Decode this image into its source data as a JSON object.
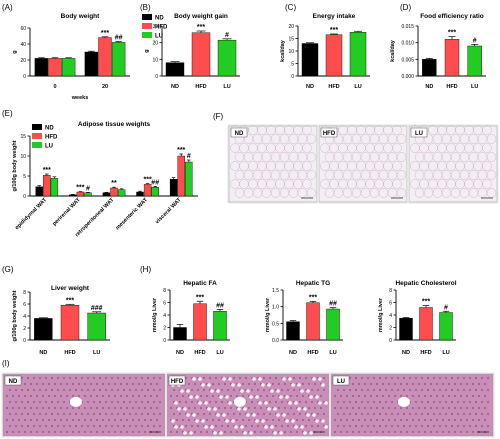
{
  "colors": {
    "ND": "#000000",
    "HFD": "#ff4d4d",
    "LU": "#22cc22",
    "axis": "#000000",
    "histo_adipose": "#f2eef3",
    "histo_liver": "#c98fb8"
  },
  "groups": [
    "ND",
    "HFD",
    "LU"
  ],
  "legend": {
    "labels": [
      "ND",
      "HFD",
      "LU"
    ]
  },
  "histology": {
    "adipose": {
      "panel_label": "(F)",
      "labels": [
        "ND",
        "HFD",
        "LU"
      ]
    },
    "liver": {
      "panel_label": "(I)",
      "labels": [
        "ND",
        "HFD",
        "LU"
      ]
    }
  },
  "chart_data": [
    {
      "id": "A",
      "panel_label": "(A)",
      "type": "bar",
      "title": "Body weight",
      "xlabel": "weeks",
      "ylabel": "g",
      "categories": [
        "0",
        "20"
      ],
      "ylim": [
        0,
        60
      ],
      "yticks": [
        0,
        20,
        40,
        60
      ],
      "series": [
        {
          "name": "ND",
          "values": [
            22,
            30
          ],
          "err": [
            0.8,
            1.0
          ],
          "annot": [
            "",
            ""
          ]
        },
        {
          "name": "HFD",
          "values": [
            22,
            48
          ],
          "err": [
            0.8,
            1.0
          ],
          "annot": [
            "",
            "***"
          ]
        },
        {
          "name": "LU",
          "values": [
            22,
            42
          ],
          "err": [
            0.8,
            1.0
          ],
          "annot": [
            "",
            "##"
          ]
        }
      ]
    },
    {
      "id": "B",
      "panel_label": "(B)",
      "type": "bar",
      "title": "Body weight gain",
      "xlabel": "",
      "ylabel": "g",
      "categories": [
        "ND",
        "HFD",
        "LU"
      ],
      "values": [
        8,
        26,
        21.5
      ],
      "err": [
        0.6,
        1.0,
        0.8
      ],
      "annot": [
        "",
        "***",
        "#"
      ],
      "ylim": [
        0,
        30
      ],
      "yticks": [
        0,
        10,
        20,
        30
      ]
    },
    {
      "id": "C",
      "panel_label": "(C)",
      "type": "bar",
      "title": "Energy intake",
      "xlabel": "",
      "ylabel": "kcal/day",
      "categories": [
        "ND",
        "HFD",
        "LU"
      ],
      "values": [
        13,
        16.5,
        17.5
      ],
      "err": [
        0.3,
        0.3,
        0.4
      ],
      "annot": [
        "",
        "***",
        ""
      ],
      "ylim": [
        0,
        20
      ],
      "yticks": [
        0,
        5,
        10,
        15,
        20
      ]
    },
    {
      "id": "D",
      "panel_label": "(D)",
      "type": "bar",
      "title": "Food efficiency ratio",
      "xlabel": "",
      "ylabel": "kcal/day",
      "categories": [
        "ND",
        "HFD",
        "LU"
      ],
      "values": [
        0.005,
        0.011,
        0.009
      ],
      "err": [
        0.0003,
        0.0008,
        0.0005
      ],
      "annot": [
        "",
        "***",
        "#"
      ],
      "ylim": [
        0,
        0.015
      ],
      "yticks": [
        0.0,
        0.005,
        0.01,
        0.015
      ],
      "tick_decimals": 3
    },
    {
      "id": "E",
      "panel_label": "(E)",
      "type": "bar",
      "title": "Adipose tissue weights",
      "xlabel": "",
      "ylabel": "g/100g body weight",
      "categories": [
        "epididymal WAT",
        "perirenal WAT",
        "retroperitoneal WAT",
        "mesenteric WAT",
        "visceral WAT"
      ],
      "ylim": [
        0,
        15
      ],
      "yticks": [
        0,
        5,
        10,
        15
      ],
      "series": [
        {
          "name": "ND",
          "values": [
            2.3,
            0.3,
            0.8,
            1.0,
            4.2
          ],
          "err": [
            0.3,
            0.1,
            0.1,
            0.2,
            0.4
          ],
          "annot": [
            "",
            "",
            "",
            "",
            ""
          ]
        },
        {
          "name": "HFD",
          "values": [
            5.2,
            1.0,
            2.0,
            2.9,
            10.0
          ],
          "err": [
            0.3,
            0.1,
            0.2,
            0.2,
            0.5
          ],
          "annot": [
            "***",
            "***",
            "**",
            "***",
            "***"
          ]
        },
        {
          "name": "LU",
          "values": [
            4.4,
            0.8,
            1.6,
            2.2,
            8.5
          ],
          "err": [
            0.4,
            0.1,
            0.2,
            0.2,
            0.5
          ],
          "annot": [
            "",
            "#",
            "",
            "##",
            "#"
          ]
        }
      ]
    },
    {
      "id": "G",
      "panel_label": "(G)",
      "type": "bar",
      "title": "Liver weight",
      "xlabel": "",
      "ylabel": "g/100g body weight",
      "categories": [
        "ND",
        "HFD",
        "LU"
      ],
      "values": [
        3.6,
        5.8,
        4.5
      ],
      "err": [
        0.1,
        0.15,
        0.2
      ],
      "annot": [
        "",
        "***",
        "###"
      ],
      "ylim": [
        0,
        8
      ],
      "yticks": [
        0,
        2,
        4,
        6,
        8
      ]
    },
    {
      "id": "H1",
      "panel_label": "(H)",
      "type": "bar",
      "title": "Hepatic FA",
      "xlabel": "",
      "ylabel": "mmol/g Liver",
      "categories": [
        "ND",
        "HFD",
        "LU"
      ],
      "values": [
        2.0,
        5.8,
        4.6
      ],
      "err": [
        0.5,
        0.4,
        0.3
      ],
      "annot": [
        "",
        "***",
        "##"
      ],
      "ylim": [
        0,
        8
      ],
      "yticks": [
        0,
        2,
        4,
        6,
        8
      ]
    },
    {
      "id": "H2",
      "panel_label": "",
      "type": "bar",
      "title": "Hepatic TG",
      "xlabel": "",
      "ylabel": "mmol/g Liver",
      "categories": [
        "ND",
        "HFD",
        "LU"
      ],
      "values": [
        0.55,
        1.12,
        0.93
      ],
      "err": [
        0.03,
        0.04,
        0.04
      ],
      "annot": [
        "",
        "***",
        "##"
      ],
      "ylim": [
        0,
        1.5
      ],
      "yticks": [
        0.0,
        0.5,
        1.0,
        1.5
      ],
      "tick_decimals": 1
    },
    {
      "id": "H3",
      "panel_label": "",
      "type": "bar",
      "title": "Hepatic Cholesterol",
      "xlabel": "",
      "ylabel": "mmol/g Liver",
      "categories": [
        "ND",
        "HFD",
        "LU"
      ],
      "values": [
        3.5,
        5.2,
        4.4
      ],
      "err": [
        0.1,
        0.3,
        0.2
      ],
      "annot": [
        "",
        "***",
        "#"
      ],
      "ylim": [
        0,
        8
      ],
      "yticks": [
        0,
        2,
        4,
        6,
        8
      ]
    }
  ]
}
